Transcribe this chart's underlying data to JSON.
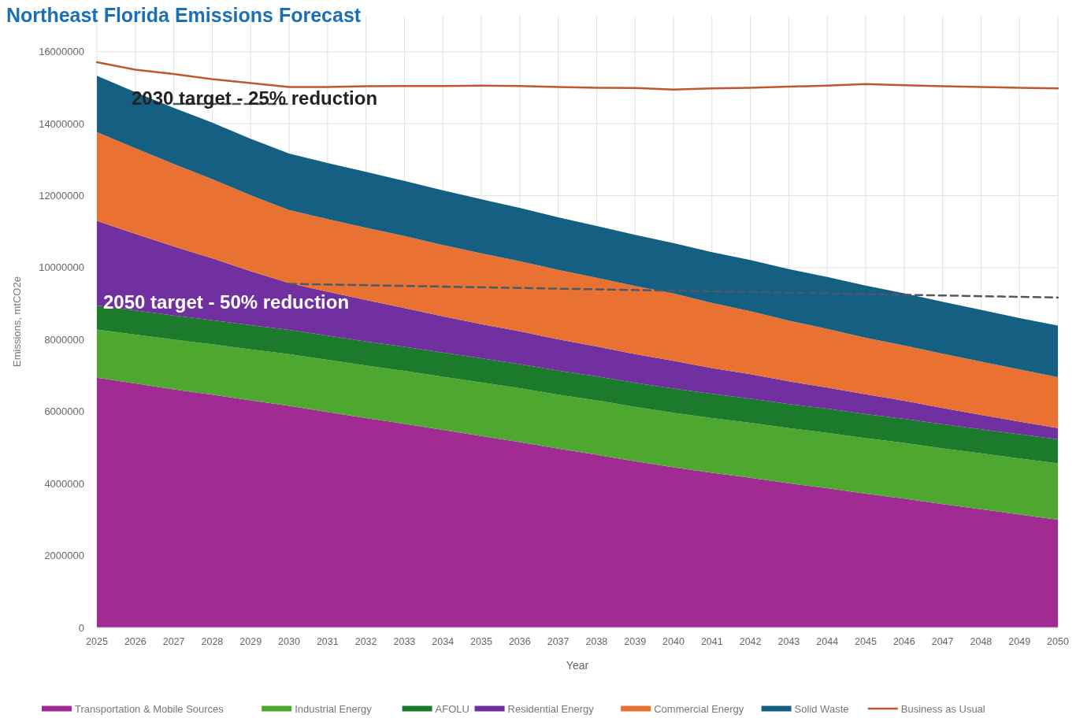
{
  "chart_data": {
    "type": "area",
    "title": "Northeast Florida Emissions Forecast",
    "xlabel": "Year",
    "ylabel": "Emissions, mtCO2e",
    "stacked": true,
    "grid": true,
    "legend": "bottom",
    "x": [
      2025,
      2026,
      2027,
      2028,
      2029,
      2030,
      2031,
      2032,
      2033,
      2034,
      2035,
      2036,
      2037,
      2038,
      2039,
      2040,
      2041,
      2042,
      2043,
      2044,
      2045,
      2046,
      2047,
      2048,
      2049,
      2050
    ],
    "xlim": [
      2025,
      2050
    ],
    "xticks": [
      2025,
      2026,
      2027,
      2028,
      2029,
      2030,
      2031,
      2032,
      2033,
      2034,
      2035,
      2036,
      2037,
      2038,
      2039,
      2040,
      2041,
      2042,
      2043,
      2044,
      2045,
      2046,
      2047,
      2048,
      2049,
      2050
    ],
    "ylim": [
      0,
      17000000
    ],
    "yticks": [
      0,
      2000000,
      4000000,
      6000000,
      8000000,
      10000000,
      12000000,
      14000000,
      16000000
    ],
    "series": [
      {
        "name": "Transportation & Mobile Sources",
        "color": "#a02b93",
        "values": [
          6940000,
          6780000,
          6620000,
          6470000,
          6310000,
          6160000,
          5990000,
          5820000,
          5660000,
          5490000,
          5320000,
          5150000,
          4970000,
          4800000,
          4620000,
          4450000,
          4300000,
          4160000,
          4010000,
          3870000,
          3720000,
          3580000,
          3430000,
          3290000,
          3140000,
          3000000
        ]
      },
      {
        "name": "Industrial Energy",
        "color": "#4ea72e",
        "values": [
          1340000,
          1360000,
          1380000,
          1400000,
          1420000,
          1440000,
          1450000,
          1460000,
          1470000,
          1480000,
          1490000,
          1500000,
          1500000,
          1510000,
          1510000,
          1520000,
          1520000,
          1530000,
          1530000,
          1540000,
          1540000,
          1550000,
          1550000,
          1550000,
          1560000,
          1560000
        ]
      },
      {
        "name": "AFOLU",
        "color": "#1c7a2c",
        "values": [
          670000,
          670000,
          670000,
          670000,
          670000,
          670000,
          670000,
          670000,
          670000,
          670000,
          670000,
          670000,
          670000,
          670000,
          670000,
          670000,
          670000,
          670000,
          670000,
          670000,
          670000,
          670000,
          670000,
          670000,
          670000,
          670000
        ]
      },
      {
        "name": "Residential Energy",
        "color": "#7030a0",
        "values": [
          2350000,
          2130000,
          1920000,
          1720000,
          1500000,
          1300000,
          1220000,
          1150000,
          1080000,
          1010000,
          950000,
          910000,
          870000,
          830000,
          800000,
          770000,
          720000,
          680000,
          630000,
          590000,
          550000,
          500000,
          450000,
          400000,
          350000,
          310000
        ]
      },
      {
        "name": "Commercial Energy",
        "color": "#e97132",
        "values": [
          2470000,
          2380000,
          2290000,
          2200000,
          2110000,
          2030000,
          2020000,
          2010000,
          2000000,
          1980000,
          1970000,
          1950000,
          1930000,
          1910000,
          1890000,
          1870000,
          1810000,
          1750000,
          1690000,
          1630000,
          1570000,
          1540000,
          1510000,
          1480000,
          1450000,
          1420000
        ]
      },
      {
        "name": "Solid Waste",
        "color": "#156082",
        "values": [
          1560000,
          1560000,
          1560000,
          1570000,
          1570000,
          1570000,
          1560000,
          1550000,
          1530000,
          1520000,
          1500000,
          1480000,
          1460000,
          1440000,
          1420000,
          1400000,
          1410000,
          1420000,
          1430000,
          1440000,
          1450000,
          1450000,
          1440000,
          1440000,
          1430000,
          1430000
        ]
      },
      {
        "name": "Business as Usual",
        "type": "line",
        "color": "#c0582e",
        "values": [
          15710000,
          15500000,
          15380000,
          15240000,
          15130000,
          15020000,
          15020000,
          15040000,
          15050000,
          15050000,
          15060000,
          15050000,
          15020000,
          15000000,
          14990000,
          14950000,
          14980000,
          15000000,
          15030000,
          15060000,
          15100000,
          15070000,
          15040000,
          15020000,
          15000000,
          14980000
        ]
      },
      {
        "type": "line",
        "line_style": "dashed",
        "color": "#4a5a6a",
        "x": [
          2027,
          2030
        ],
        "values": [
          14550000,
          14550000
        ]
      },
      {
        "type": "line",
        "line_style": "dashed",
        "color": "#4a5a6a",
        "x": [
          2030,
          2050
        ],
        "values": [
          9550000,
          9170000
        ]
      }
    ],
    "annotations": [
      "2030 target - 25% reduction",
      "2050 target - 50% reduction"
    ]
  }
}
